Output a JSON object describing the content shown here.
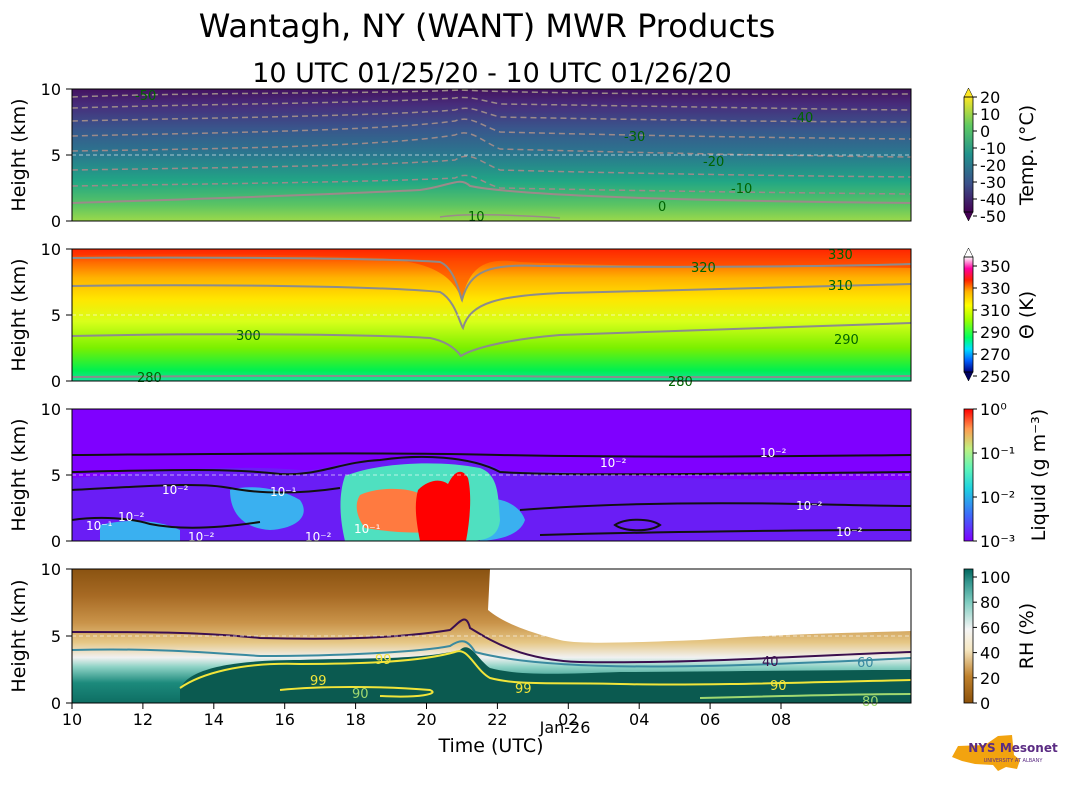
{
  "header": {
    "title": "Wantagh, NY (WANT) MWR Products",
    "subtitle": "10 UTC 01/25/20 - 10 UTC 01/26/20"
  },
  "chart_data": [
    {
      "type": "heatmap",
      "name": "temperature",
      "ylabel": "Height (km)",
      "ylim": [
        0,
        10
      ],
      "yticks": [
        "0",
        "5",
        "10"
      ],
      "colorbar": {
        "label": "Temp. (°C)",
        "ticks": [
          "20",
          "10",
          "0",
          "-10",
          "-20",
          "-30",
          "-40",
          "-50"
        ]
      },
      "contour_labels": [
        "-50",
        "-40",
        "-30",
        "-20",
        "-10",
        "0",
        "10"
      ]
    },
    {
      "type": "heatmap",
      "name": "potential-temperature",
      "ylabel": "Height (km)",
      "ylim": [
        0,
        10
      ],
      "yticks": [
        "0",
        "5",
        "10"
      ],
      "colorbar": {
        "label": "Θ (K)",
        "ticks": [
          "350",
          "330",
          "310",
          "290",
          "270",
          "250"
        ]
      },
      "contour_labels": [
        "280",
        "300",
        "290",
        "310",
        "320",
        "330",
        "280"
      ]
    },
    {
      "type": "heatmap",
      "name": "liquid-water",
      "ylabel": "Height (km)",
      "ylim": [
        0,
        10
      ],
      "yticks": [
        "0",
        "5",
        "10"
      ],
      "colorbar": {
        "label": "Liquid (g m⁻³)",
        "ticks": [
          "10⁰",
          "10⁻¹",
          "10⁻²",
          "10⁻³"
        ]
      },
      "contour_labels": [
        "10⁻²",
        "10⁻¹",
        "10⁻²",
        "10⁻²",
        "10⁻²",
        "10⁻²",
        "10⁻²",
        "10⁻¹",
        "10⁻¹",
        "10⁻²",
        "10⁻²"
      ]
    },
    {
      "type": "heatmap",
      "name": "relative-humidity",
      "ylabel": "Height (km)",
      "ylim": [
        0,
        10
      ],
      "yticks": [
        "0",
        "5",
        "10"
      ],
      "colorbar": {
        "label": "RH (%)",
        "ticks": [
          "100",
          "80",
          "60",
          "40",
          "20",
          "0"
        ]
      },
      "contour_labels": [
        "99",
        "99",
        "99",
        "90",
        "40",
        "60",
        "90",
        "80"
      ]
    }
  ],
  "xaxis": {
    "label": "Time (UTC)",
    "ticks": [
      "10",
      "12",
      "14",
      "16",
      "18",
      "20",
      "22",
      "02",
      "04",
      "06",
      "08"
    ],
    "date_label": "Jan-26"
  },
  "logo": {
    "text": "NYS Mesonet",
    "subtext": "UNIVERSITY AT ALBANY"
  }
}
